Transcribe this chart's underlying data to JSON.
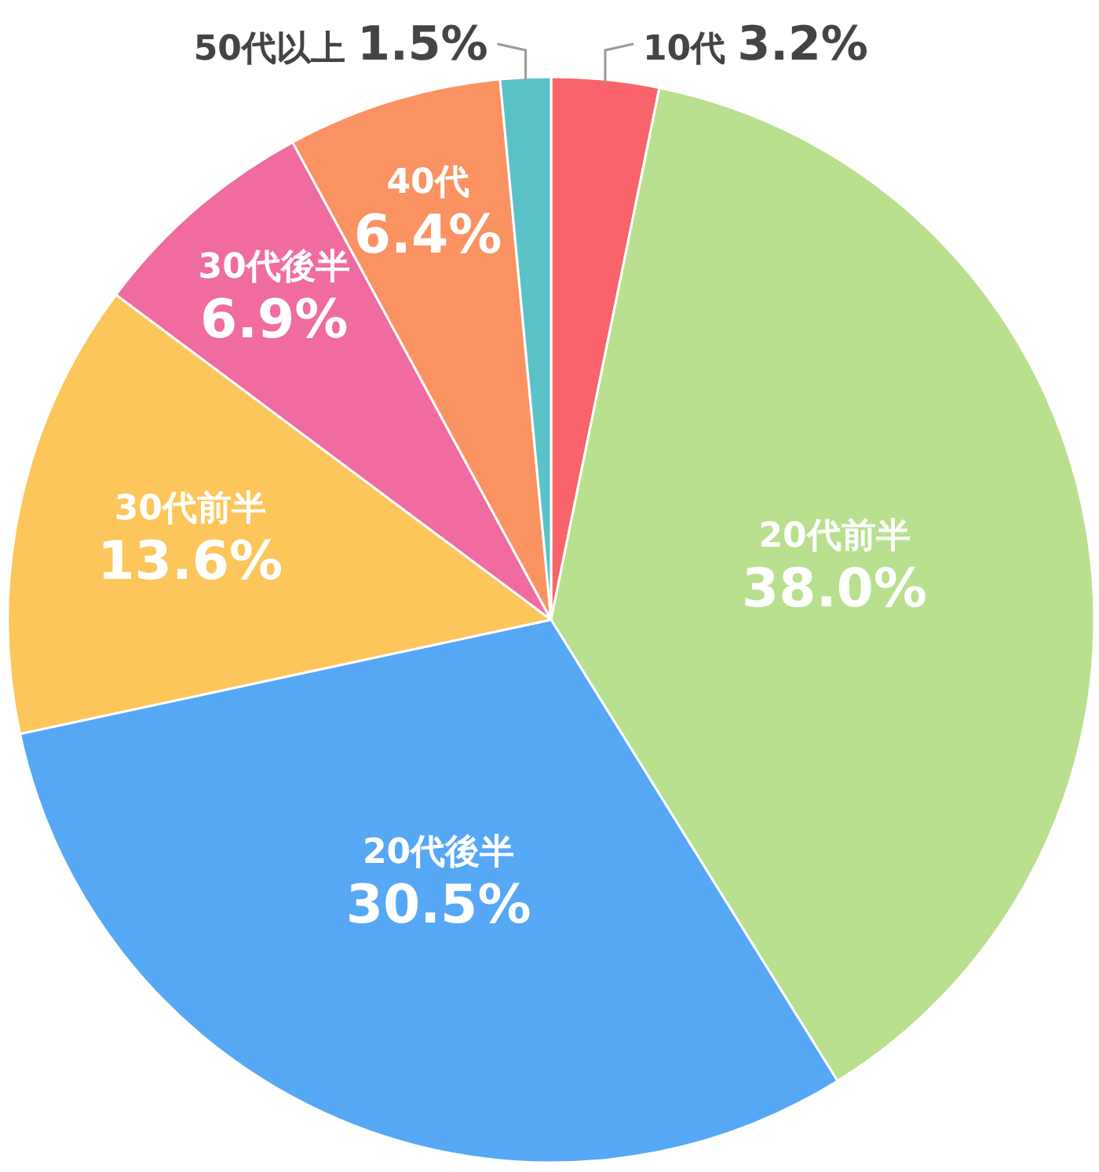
{
  "chart_data": {
    "type": "pie",
    "categories": [
      "10代",
      "20代前半",
      "20代後半",
      "30代前半",
      "30代後半",
      "40代",
      "50代以上"
    ],
    "values": [
      3.2,
      38.0,
      30.5,
      13.6,
      6.9,
      6.4,
      1.5
    ],
    "value_labels": [
      "3.2%",
      "38.0%",
      "30.5%",
      "13.6%",
      "6.9%",
      "6.4%",
      "1.5%"
    ],
    "colors": [
      "#f86469",
      "#b9e08f",
      "#56a8f5",
      "#fcc65a",
      "#f06ba0",
      "#fa9262",
      "#5bc3c8"
    ]
  }
}
